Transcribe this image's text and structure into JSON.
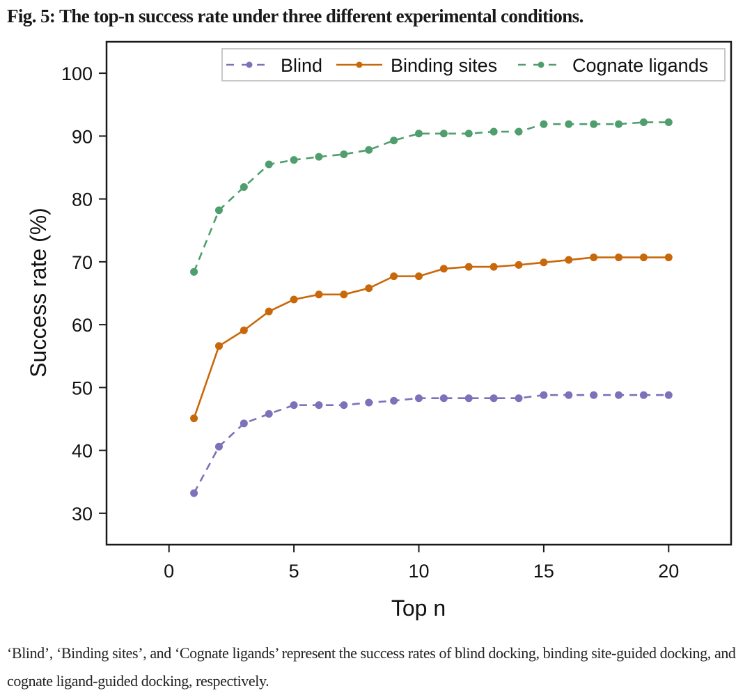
{
  "figure": {
    "title": "Fig. 5: The top-n success rate under three different experimental conditions.",
    "caption": "‘Blind’, ‘Binding sites’, and ‘Cognate ligands’ represent the success rates of blind docking, binding site-guided docking, and cognate ligand-guided docking, respectively."
  },
  "chart_data": {
    "type": "line",
    "title": "",
    "xlabel": "Top n",
    "ylabel": "Success rate (%)",
    "xlim": [
      -2.5,
      22.5
    ],
    "ylim": [
      25,
      105
    ],
    "xticks": [
      0,
      5,
      10,
      15,
      20
    ],
    "yticks": [
      30,
      40,
      50,
      60,
      70,
      80,
      90,
      100
    ],
    "grid": false,
    "legend_position": "top-right",
    "x": [
      1,
      2,
      3,
      4,
      5,
      6,
      7,
      8,
      9,
      10,
      11,
      12,
      13,
      14,
      15,
      16,
      17,
      18,
      19,
      20
    ],
    "series": [
      {
        "name": "Blind",
        "color": "#7b72b9",
        "line_style": "dashed",
        "values": [
          33.2,
          40.6,
          44.3,
          45.8,
          47.2,
          47.2,
          47.2,
          47.6,
          47.9,
          48.3,
          48.3,
          48.3,
          48.3,
          48.3,
          48.8,
          48.8,
          48.8,
          48.8,
          48.8,
          48.8
        ]
      },
      {
        "name": "Binding sites",
        "color": "#c8680a",
        "line_style": "solid",
        "values": [
          45.1,
          56.6,
          59.1,
          62.1,
          64.0,
          64.8,
          64.8,
          65.8,
          67.7,
          67.7,
          68.9,
          69.2,
          69.2,
          69.5,
          69.9,
          70.3,
          70.7,
          70.7,
          70.7,
          70.7
        ]
      },
      {
        "name": "Cognate ligands",
        "color": "#4f9e6e",
        "line_style": "dashed",
        "values": [
          68.4,
          78.2,
          81.9,
          85.5,
          86.2,
          86.7,
          87.1,
          87.8,
          89.3,
          90.4,
          90.4,
          90.4,
          90.7,
          90.7,
          91.9,
          91.9,
          91.9,
          91.9,
          92.2,
          92.2
        ]
      }
    ]
  }
}
